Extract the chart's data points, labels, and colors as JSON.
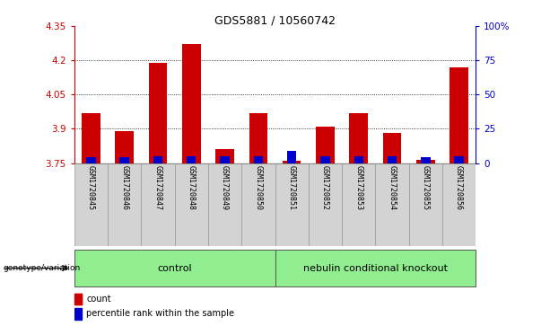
{
  "title": "GDS5881 / 10560742",
  "samples": [
    "GSM1720845",
    "GSM1720846",
    "GSM1720847",
    "GSM1720848",
    "GSM1720849",
    "GSM1720850",
    "GSM1720851",
    "GSM1720852",
    "GSM1720853",
    "GSM1720854",
    "GSM1720855",
    "GSM1720856"
  ],
  "red_values": [
    3.97,
    3.89,
    4.19,
    4.27,
    3.81,
    3.97,
    3.758,
    3.91,
    3.97,
    3.88,
    3.764,
    4.17
  ],
  "blue_values": [
    3.775,
    3.775,
    3.778,
    3.778,
    3.778,
    3.778,
    3.805,
    3.778,
    3.778,
    3.778,
    3.777,
    3.778
  ],
  "ymin": 3.75,
  "ymax": 4.35,
  "yticks_left": [
    3.75,
    3.9,
    4.05,
    4.2,
    4.35
  ],
  "yticks_right_values": [
    0,
    25,
    50,
    75,
    100
  ],
  "yticks_right_positions": [
    3.75,
    3.9,
    4.05,
    4.2,
    4.35
  ],
  "red_color": "#cc0000",
  "blue_color": "#0000cc",
  "bar_width": 0.55,
  "blue_bar_width": 0.28,
  "control_label": "control",
  "knockout_label": "nebulin conditional knockout",
  "genotype_label": "genotype/variation",
  "control_color": "#90ee90",
  "knockout_color": "#90ee90",
  "legend_count": "count",
  "legend_percentile": "percentile rank within the sample",
  "background_plot": "#ffffff",
  "background_xtick": "#d3d3d3",
  "grid_dotted_at": [
    3.9,
    4.05,
    4.2
  ]
}
